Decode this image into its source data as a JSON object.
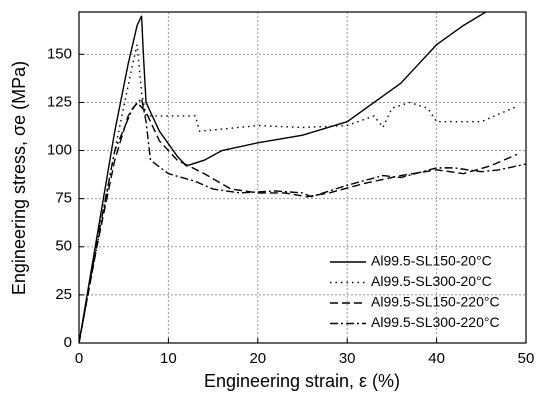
{
  "chart_data": {
    "type": "line",
    "xlabel": "Engineering strain, ε (%)",
    "ylabel": "Engineering stress, σe (MPa)",
    "xlim": [
      0,
      50
    ],
    "ylim": [
      0,
      172
    ],
    "xticks": [
      0,
      10,
      20,
      30,
      40,
      50
    ],
    "yticks": [
      0,
      25,
      50,
      75,
      100,
      125,
      150
    ],
    "grid": true,
    "legend": "lower right",
    "series": [
      {
        "name": "Al99.5-SL150-20°C",
        "color": "#000000",
        "dash": "solid",
        "x": [
          0,
          2,
          4,
          5.5,
          6.5,
          7,
          7.2,
          7.5,
          9,
          11,
          12,
          14,
          16,
          20,
          25,
          30,
          33,
          36,
          38,
          40,
          43,
          45.5
        ],
        "values": [
          0,
          55,
          110,
          145,
          165,
          170,
          150,
          125,
          110,
          97,
          92,
          95,
          100,
          104,
          108,
          115,
          125,
          135,
          145,
          155,
          165,
          172
        ]
      },
      {
        "name": "Al99.5-SL300-20°C",
        "color": "#000000",
        "dash": "dotted",
        "x": [
          0,
          2,
          4,
          6,
          6.5,
          7,
          7.5,
          10,
          13,
          13.5,
          20,
          25,
          30,
          33,
          34,
          35,
          37,
          39,
          40,
          45,
          49
        ],
        "values": [
          0,
          50,
          100,
          145,
          155,
          130,
          118,
          118,
          118,
          110,
          113,
          112,
          113,
          118,
          112,
          122,
          125,
          122,
          115,
          115,
          123
        ]
      },
      {
        "name": "Al99.5-SL150-220°C",
        "color": "#000000",
        "dash": "dashed",
        "x": [
          0,
          2,
          4,
          5.5,
          6.5,
          7.5,
          9,
          11,
          14,
          17,
          20,
          23,
          25.5,
          28,
          32,
          36,
          40,
          43,
          46,
          49
        ],
        "values": [
          0,
          50,
          95,
          118,
          125,
          120,
          105,
          95,
          88,
          80,
          78,
          78,
          76,
          78,
          83,
          87,
          90,
          88,
          92,
          98
        ]
      },
      {
        "name": "Al99.5-SL300-220°C",
        "color": "#000000",
        "dash": "dashdot",
        "x": [
          0,
          2,
          4,
          6,
          7,
          7.5,
          8,
          10,
          13,
          15,
          18,
          22,
          25,
          26,
          30,
          34,
          36,
          40,
          42,
          45,
          47,
          50
        ],
        "values": [
          0,
          52,
          100,
          122,
          127,
          115,
          95,
          88,
          84,
          80,
          78,
          79,
          78,
          76,
          82,
          87,
          86,
          91,
          91,
          89,
          90,
          93
        ]
      }
    ]
  }
}
